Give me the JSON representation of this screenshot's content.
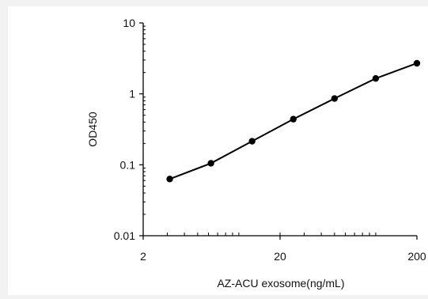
{
  "chart_data": {
    "type": "line",
    "x_scale": "log",
    "y_scale": "log",
    "xlabel": "AZ-ACU exosome(ng/mL)",
    "ylabel": "OD450",
    "xlim": [
      2,
      200
    ],
    "ylim": [
      0.01,
      10
    ],
    "x_ticks": [
      {
        "value": 2,
        "label": "2"
      },
      {
        "value": 20,
        "label": "20"
      },
      {
        "value": 200,
        "label": "200"
      }
    ],
    "y_ticks": [
      {
        "value": 10,
        "label": "10"
      },
      {
        "value": 1,
        "label": "1"
      },
      {
        "value": 0.1,
        "label": "0.1"
      },
      {
        "value": 0.01,
        "label": "0.01"
      }
    ],
    "grid": false,
    "series": [
      {
        "x": [
          3.125,
          6.25,
          12.5,
          25,
          50,
          100,
          200
        ],
        "y": [
          0.063,
          0.105,
          0.215,
          0.44,
          0.86,
          1.65,
          2.7
        ]
      }
    ],
    "colors": {
      "line": "#000000",
      "marker": "#000000",
      "axis": "#000000",
      "plot_background": "#ffffff",
      "page_background": "#f2f2f2"
    }
  }
}
